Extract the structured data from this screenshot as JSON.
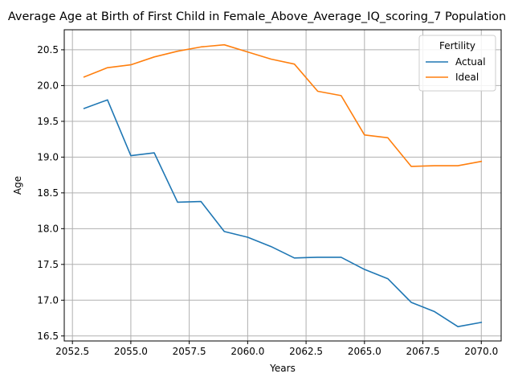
{
  "chart_data": {
    "type": "line",
    "title": "Average Age at Birth of First Child in Female_Above_Average_IQ_scoring_7 Population",
    "xlabel": "Years",
    "ylabel": "Age",
    "xlim": [
      2052.15,
      2070.85
    ],
    "ylim": [
      16.43,
      20.78
    ],
    "xticks": [
      2052.5,
      2055.0,
      2057.5,
      2060.0,
      2062.5,
      2065.0,
      2067.5,
      2070.0
    ],
    "xtick_labels": [
      "2052.5",
      "2055.0",
      "2057.5",
      "2060.0",
      "2062.5",
      "2065.0",
      "2067.5",
      "2070.0"
    ],
    "yticks": [
      16.5,
      17.0,
      17.5,
      18.0,
      18.5,
      19.0,
      19.5,
      20.0,
      20.5
    ],
    "ytick_labels": [
      "16.5",
      "17.0",
      "17.5",
      "18.0",
      "18.5",
      "19.0",
      "19.5",
      "20.0",
      "20.5"
    ],
    "grid": true,
    "legend": {
      "title": "Fertility",
      "position": "top-right"
    },
    "x": [
      2053,
      2054,
      2055,
      2056,
      2057,
      2058,
      2059,
      2060,
      2061,
      2062,
      2063,
      2064,
      2065,
      2066,
      2067,
      2068,
      2069,
      2070
    ],
    "series": [
      {
        "name": "Actual",
        "color": "#1f77b4",
        "values": [
          19.68,
          19.8,
          19.02,
          19.06,
          18.37,
          18.38,
          17.96,
          17.88,
          17.75,
          17.59,
          17.6,
          17.6,
          17.43,
          17.3,
          16.97,
          16.84,
          16.63,
          16.69
        ]
      },
      {
        "name": "Ideal",
        "color": "#ff7f0e",
        "values": [
          20.12,
          20.25,
          20.29,
          20.4,
          20.48,
          20.54,
          20.57,
          20.47,
          20.37,
          20.3,
          19.92,
          19.86,
          19.31,
          19.27,
          18.87,
          18.88,
          18.88,
          18.94
        ]
      }
    ]
  }
}
